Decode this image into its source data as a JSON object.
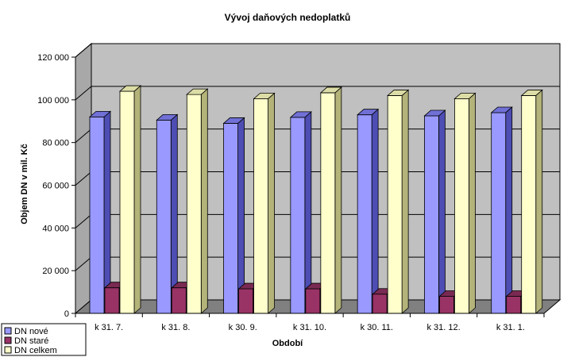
{
  "chart_data": {
    "type": "bar",
    "title": "Vývoj daňových nedoplatků",
    "xlabel": "Období",
    "ylabel": "Objem DN v mil. Kč",
    "categories": [
      "k 31. 7.",
      "k 31. 8.",
      "k 30. 9.",
      "k 31. 10.",
      "k 30. 11.",
      "k 31. 12.",
      "k 31. 1."
    ],
    "series": [
      {
        "name": "DN nové",
        "values": [
          92000,
          90500,
          89000,
          91800,
          93000,
          92500,
          94000
        ]
      },
      {
        "name": "DN staré",
        "values": [
          12000,
          12000,
          11500,
          11500,
          9000,
          8000,
          8000
        ]
      },
      {
        "name": "DN celkem",
        "values": [
          104000,
          102500,
          100500,
          103300,
          102000,
          100500,
          102000
        ]
      }
    ],
    "ylim": [
      0,
      120000
    ],
    "yticks": [
      0,
      20000,
      40000,
      60000,
      80000,
      100000,
      120000
    ],
    "ytick_labels": [
      "0",
      "20 000",
      "40 000",
      "60 000",
      "80 000",
      "100 000",
      "120 000"
    ],
    "grid": true,
    "legend_position": "bottom-left",
    "colors": {
      "DN nové": {
        "front": "#9999ff",
        "side": "#4d4db3",
        "top": "#7070d6"
      },
      "DN staré": {
        "front": "#993366",
        "side": "#5a1e3c",
        "top": "#7a2a52"
      },
      "DN celkem": {
        "front": "#ffffcc",
        "side": "#b3b37a",
        "top": "#dcdca6"
      },
      "wall": "#c0c0c0",
      "floor": "#808080"
    }
  }
}
